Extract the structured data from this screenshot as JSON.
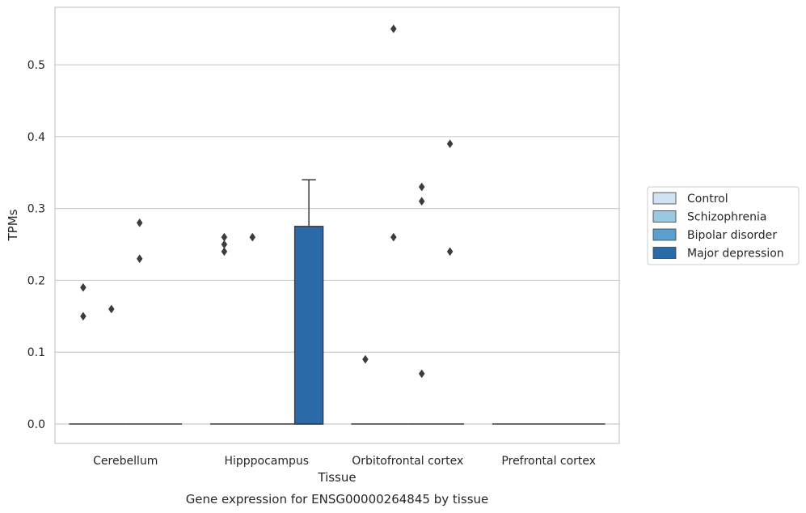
{
  "chart_data": {
    "type": "box",
    "title": "",
    "caption": "Gene expression for ENSG00000264845 by tissue",
    "xlabel": "Tissue",
    "ylabel": "TPMs",
    "ylim": [
      -0.027,
      0.58
    ],
    "yticks": [
      0.0,
      0.1,
      0.2,
      0.3,
      0.4,
      0.5
    ],
    "ytick_labels": [
      "0.0",
      "0.1",
      "0.2",
      "0.3",
      "0.4",
      "0.5"
    ],
    "grid": "horizontal",
    "legend_position": "right",
    "categories": [
      "Cerebellum",
      "Hipppocampus",
      "Orbitofrontal cortex",
      "Prefrontal cortex"
    ],
    "series": [
      {
        "name": "Control",
        "color": "#d1e2f2",
        "boxes": [
          {
            "category": "Cerebellum",
            "q1": 0,
            "median": 0,
            "q3": 0,
            "whisker_low": 0,
            "whisker_high": 0,
            "outliers": [
              0.19,
              0.15
            ]
          },
          {
            "category": "Hipppocampus",
            "q1": 0,
            "median": 0,
            "q3": 0,
            "whisker_low": 0,
            "whisker_high": 0,
            "outliers": [
              0.26,
              0.25,
              0.24
            ]
          },
          {
            "category": "Orbitofrontal cortex",
            "q1": 0,
            "median": 0,
            "q3": 0,
            "whisker_low": 0,
            "whisker_high": 0,
            "outliers": [
              0.09
            ]
          },
          {
            "category": "Prefrontal cortex",
            "q1": 0,
            "median": 0,
            "q3": 0,
            "whisker_low": 0,
            "whisker_high": 0,
            "outliers": []
          }
        ]
      },
      {
        "name": "Schizophrenia",
        "color": "#9ac8e0",
        "boxes": [
          {
            "category": "Cerebellum",
            "q1": 0,
            "median": 0,
            "q3": 0,
            "whisker_low": 0,
            "whisker_high": 0,
            "outliers": [
              0.16
            ]
          },
          {
            "category": "Hipppocampus",
            "q1": 0,
            "median": 0,
            "q3": 0,
            "whisker_low": 0,
            "whisker_high": 0,
            "outliers": [
              0.26
            ]
          },
          {
            "category": "Orbitofrontal cortex",
            "q1": 0,
            "median": 0,
            "q3": 0,
            "whisker_low": 0,
            "whisker_high": 0,
            "outliers": [
              0.55,
              0.26
            ]
          },
          {
            "category": "Prefrontal cortex",
            "q1": 0,
            "median": 0,
            "q3": 0,
            "whisker_low": 0,
            "whisker_high": 0,
            "outliers": []
          }
        ]
      },
      {
        "name": "Bipolar disorder",
        "color": "#5a9fcd",
        "boxes": [
          {
            "category": "Cerebellum",
            "q1": 0,
            "median": 0,
            "q3": 0,
            "whisker_low": 0,
            "whisker_high": 0,
            "outliers": [
              0.28,
              0.23
            ]
          },
          {
            "category": "Hipppocampus",
            "q1": 0,
            "median": 0,
            "q3": 0,
            "whisker_low": 0,
            "whisker_high": 0,
            "outliers": []
          },
          {
            "category": "Orbitofrontal cortex",
            "q1": 0,
            "median": 0,
            "q3": 0,
            "whisker_low": 0,
            "whisker_high": 0,
            "outliers": [
              0.33,
              0.31,
              0.07
            ]
          },
          {
            "category": "Prefrontal cortex",
            "q1": 0,
            "median": 0,
            "q3": 0,
            "whisker_low": 0,
            "whisker_high": 0,
            "outliers": []
          }
        ]
      },
      {
        "name": "Major depression",
        "color": "#2b6aa8",
        "boxes": [
          {
            "category": "Cerebellum",
            "q1": 0,
            "median": 0,
            "q3": 0,
            "whisker_low": 0,
            "whisker_high": 0,
            "outliers": []
          },
          {
            "category": "Hipppocampus",
            "q1": 0,
            "median": 0,
            "q3": 0.275,
            "whisker_low": 0,
            "whisker_high": 0.34,
            "outliers": []
          },
          {
            "category": "Orbitofrontal cortex",
            "q1": 0,
            "median": 0,
            "q3": 0,
            "whisker_low": 0,
            "whisker_high": 0,
            "outliers": [
              0.39,
              0.24
            ]
          },
          {
            "category": "Prefrontal cortex",
            "q1": 0,
            "median": 0,
            "q3": 0,
            "whisker_low": 0,
            "whisker_high": 0,
            "outliers": []
          }
        ]
      }
    ]
  }
}
